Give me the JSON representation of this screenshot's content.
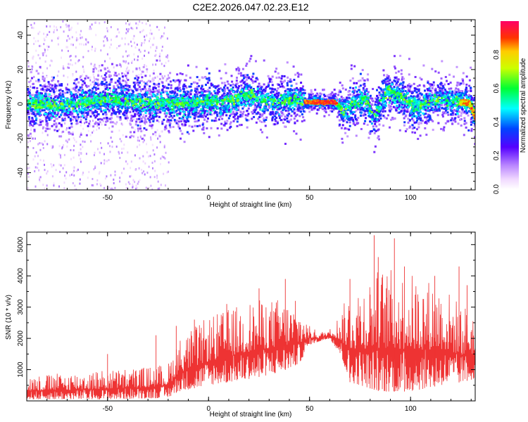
{
  "figure_title": "C2E2.2026.047.02.23.E12",
  "chart_data": [
    {
      "type": "heatmap",
      "xlabel": "Height of straight line (km)",
      "ylabel": "Frequency (Hz)",
      "xlim": [
        -90,
        132
      ],
      "ylim": [
        -50,
        49
      ],
      "xticks": [
        -50,
        0,
        50,
        100
      ],
      "yticks": [
        -40,
        -20,
        0,
        20,
        40
      ],
      "colorbar_label": "Normalized spectral amplitude",
      "colorbar_range": [
        0,
        1
      ],
      "colorbar_ticks": [
        "0.0",
        "0.2",
        "0.4",
        "0.6",
        "0.8"
      ],
      "colorbar_tick_values": [
        0,
        0.2,
        0.4,
        0.6,
        0.8
      ],
      "ridge_center_hz": [
        {
          "x": -90,
          "y": 0
        },
        {
          "x": -75,
          "y": -1
        },
        {
          "x": -60,
          "y": 1
        },
        {
          "x": -50,
          "y": 3
        },
        {
          "x": -40,
          "y": 2
        },
        {
          "x": -30,
          "y": 0
        },
        {
          "x": -20,
          "y": 1
        },
        {
          "x": -10,
          "y": 0
        },
        {
          "x": 0,
          "y": 2
        },
        {
          "x": 10,
          "y": 1
        },
        {
          "x": 15,
          "y": 4
        },
        {
          "x": 20,
          "y": 6
        },
        {
          "x": 25,
          "y": 2
        },
        {
          "x": 35,
          "y": 1
        },
        {
          "x": 42,
          "y": 3
        },
        {
          "x": 48,
          "y": 1
        },
        {
          "x": 55,
          "y": 1
        },
        {
          "x": 62,
          "y": 1
        },
        {
          "x": 67,
          "y": -5
        },
        {
          "x": 72,
          "y": 1
        },
        {
          "x": 78,
          "y": 2
        },
        {
          "x": 81,
          "y": -8
        },
        {
          "x": 85,
          "y": 1
        },
        {
          "x": 88,
          "y": 7
        },
        {
          "x": 95,
          "y": 4
        },
        {
          "x": 102,
          "y": -2
        },
        {
          "x": 110,
          "y": 2
        },
        {
          "x": 118,
          "y": 2
        },
        {
          "x": 126,
          "y": 1
        },
        {
          "x": 129,
          "y": 0
        },
        {
          "x": 132,
          "y": -9
        }
      ],
      "scatter_region_x": [
        -90,
        -20
      ]
    },
    {
      "type": "line",
      "xlabel": "Height of straight line (km)",
      "ylabel": "SNR (10 * v/v)",
      "xlim": [
        -90,
        132
      ],
      "ylim": [
        0,
        5400
      ],
      "xticks": [
        -50,
        0,
        50,
        100
      ],
      "yticks": [
        1000,
        2000,
        3000,
        4000,
        5000
      ],
      "color": "#ee3333",
      "envelope": {
        "x": [
          -90,
          -70,
          -50,
          -30,
          -20,
          -15,
          0,
          20,
          35,
          45,
          50,
          55,
          60,
          65,
          70,
          85,
          100,
          115,
          125,
          132
        ],
        "lower": [
          50,
          50,
          50,
          80,
          100,
          300,
          500,
          700,
          900,
          1200,
          1800,
          1900,
          2000,
          1500,
          600,
          300,
          300,
          500,
          600,
          700
        ],
        "upper": [
          800,
          900,
          1000,
          1100,
          1200,
          2000,
          2700,
          3200,
          3300,
          3000,
          2400,
          2200,
          2300,
          2800,
          3600,
          4300,
          4100,
          3800,
          3100,
          3000
        ]
      },
      "peaks": [
        {
          "x": -50,
          "y": 1500
        },
        {
          "x": -26,
          "y": 2100
        },
        {
          "x": -16,
          "y": 2400
        },
        {
          "x": -7,
          "y": 2600
        },
        {
          "x": 9,
          "y": 3100
        },
        {
          "x": 25,
          "y": 3600
        },
        {
          "x": 38,
          "y": 3900
        },
        {
          "x": 43,
          "y": 3200
        },
        {
          "x": 70,
          "y": 3900
        },
        {
          "x": 80,
          "y": 3400
        },
        {
          "x": 82,
          "y": 5300
        },
        {
          "x": 84,
          "y": 4600
        },
        {
          "x": 88,
          "y": 3600
        },
        {
          "x": 92,
          "y": 5200
        },
        {
          "x": 97,
          "y": 4300
        },
        {
          "x": 112,
          "y": 4000
        },
        {
          "x": 124,
          "y": 4300
        },
        {
          "x": 128,
          "y": 3700
        }
      ]
    }
  ]
}
